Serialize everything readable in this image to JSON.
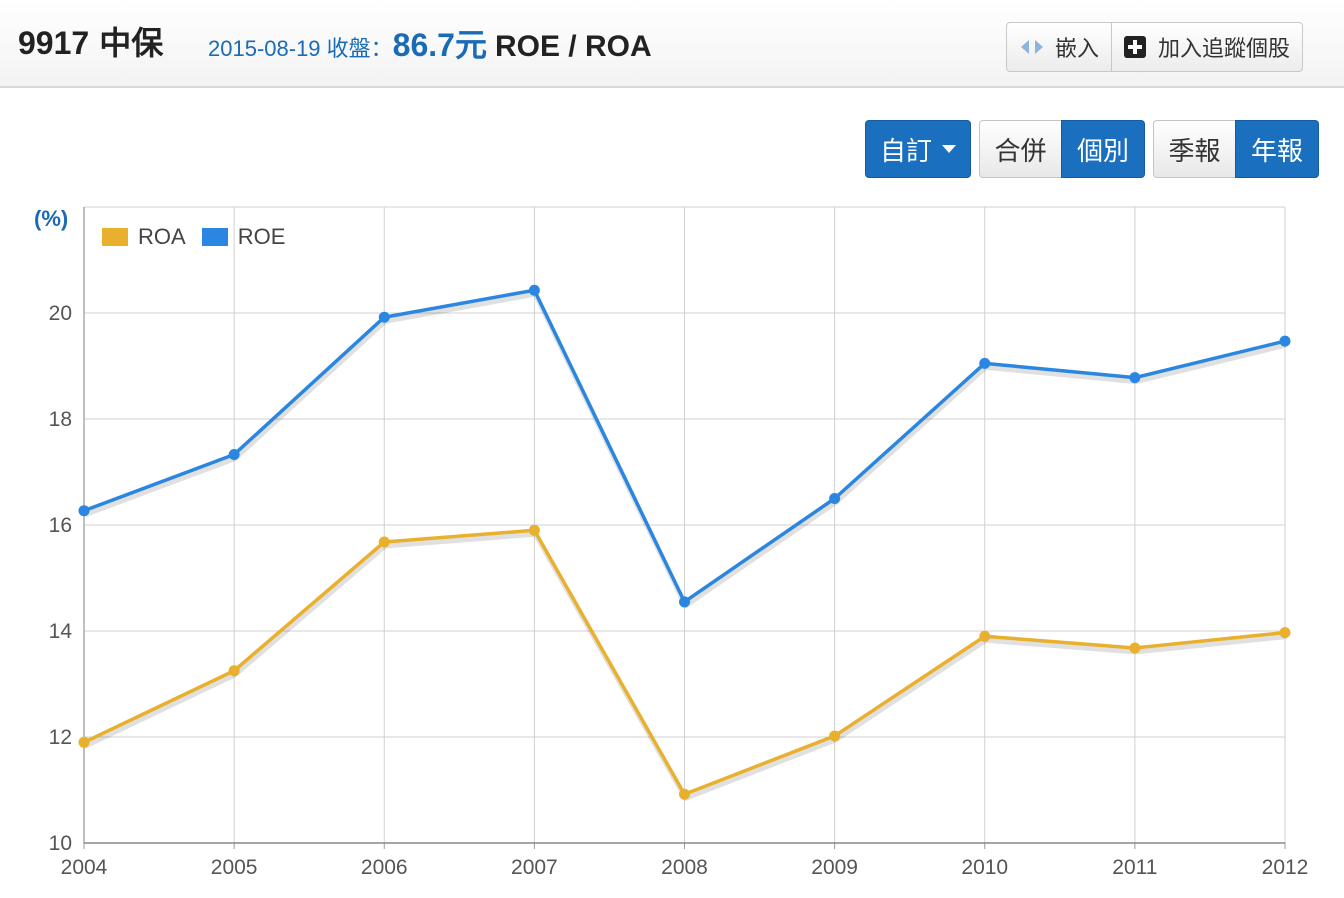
{
  "header": {
    "code": "9917",
    "name": "中保",
    "date_label": "2015-08-19 收盤：",
    "price": "86.7元",
    "metric": "ROE / ROA"
  },
  "toolbar": {
    "embed_label": "嵌入",
    "track_label": "加入追蹤個股"
  },
  "controls": {
    "custom_label": "自訂",
    "consolidated_label": "合併",
    "individual_label": "個別",
    "quarterly_label": "季報",
    "annual_label": "年報",
    "active_statement": "個別",
    "active_period": "年報"
  },
  "colors": {
    "roa": "#e8b02c",
    "roe": "#2a86e0",
    "accent": "#1a6fbf"
  },
  "chart_data": {
    "type": "line",
    "title": "ROE / ROA",
    "xlabel": "",
    "ylabel": "(%)",
    "ylim": [
      10,
      22
    ],
    "yticks": [
      10,
      12,
      14,
      16,
      18,
      20
    ],
    "grid": true,
    "legend_position": "top-left",
    "categories": [
      "2004",
      "2005",
      "2006",
      "2007",
      "2008",
      "2009",
      "2010",
      "2011",
      "2012"
    ],
    "series": [
      {
        "name": "ROA",
        "color": "#e8b02c",
        "values": [
          11.9,
          13.25,
          15.68,
          15.9,
          10.92,
          12.02,
          13.9,
          13.68,
          13.97
        ]
      },
      {
        "name": "ROE",
        "color": "#2a86e0",
        "values": [
          16.27,
          17.33,
          19.92,
          20.43,
          14.55,
          16.5,
          19.05,
          18.78,
          19.47
        ]
      }
    ]
  }
}
